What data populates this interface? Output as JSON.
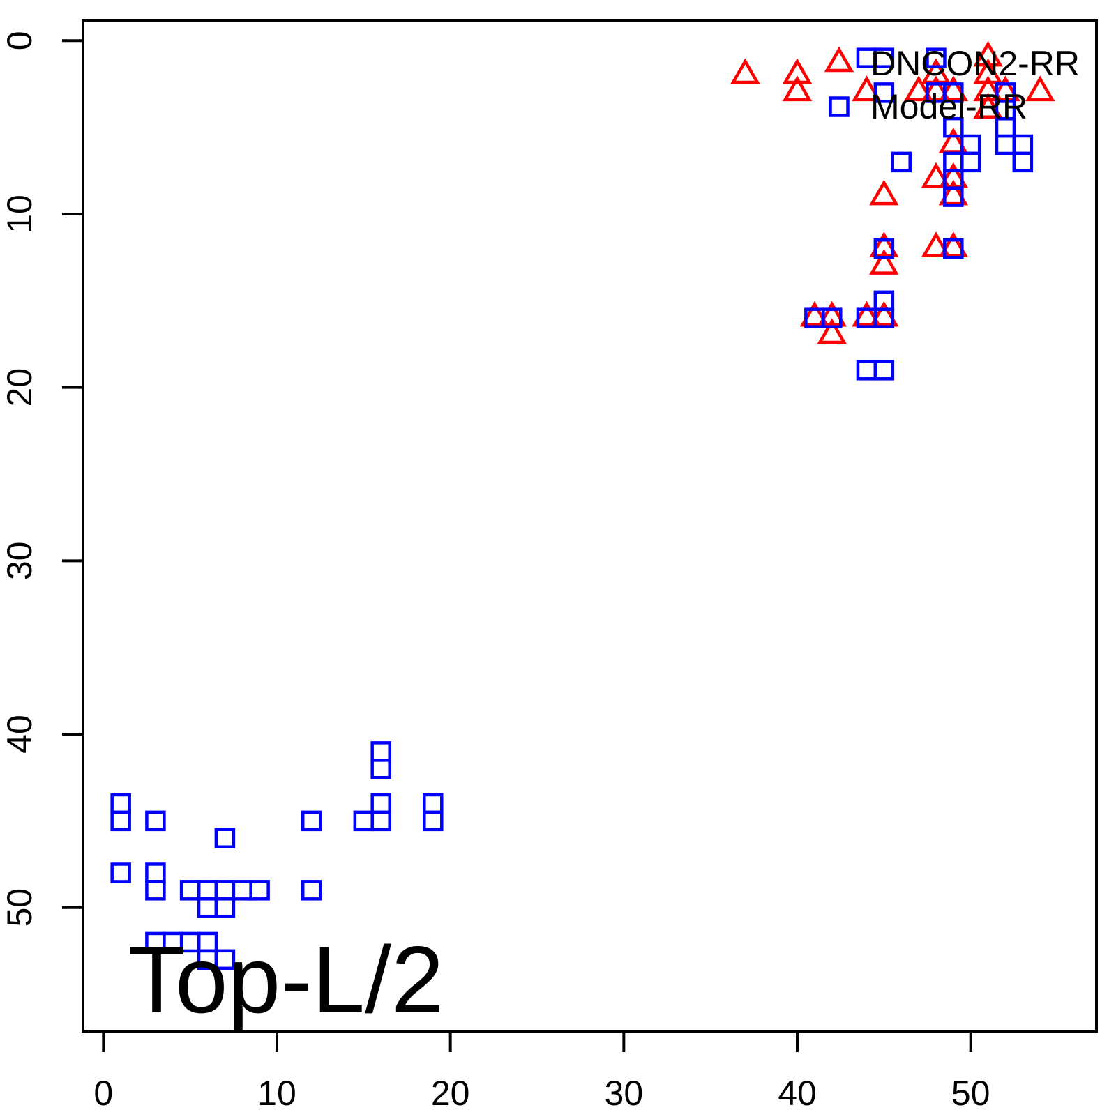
{
  "chart_data": {
    "type": "scatter",
    "title": "",
    "annotation": "Top-L/2",
    "xlabel": "",
    "ylabel": "",
    "x_ticks": [
      0,
      10,
      20,
      30,
      40,
      50
    ],
    "y_ticks": [
      0,
      10,
      20,
      30,
      40,
      50
    ],
    "xlim": [
      -1.2,
      57.2
    ],
    "ylim": [
      57.1,
      -1.2
    ],
    "y_axis_reversed": true,
    "grid": false,
    "legend": {
      "position": "topright",
      "entries": [
        {
          "label": "DNCON2-RR",
          "marker": "triangle",
          "color": "#FF0000"
        },
        {
          "label": "Model-RR",
          "marker": "square",
          "color": "#0000FF"
        }
      ]
    },
    "series": [
      {
        "name": "DNCON2-RR",
        "marker": "triangle",
        "color": "#FF0000",
        "points": [
          [
            37,
            2
          ],
          [
            40,
            2
          ],
          [
            40,
            3
          ],
          [
            44,
            3
          ],
          [
            45,
            9
          ],
          [
            45,
            12
          ],
          [
            45,
            13
          ],
          [
            41,
            16
          ],
          [
            42,
            16
          ],
          [
            42,
            17
          ],
          [
            44,
            16
          ],
          [
            45,
            16
          ],
          [
            47,
            3
          ],
          [
            48,
            2
          ],
          [
            48,
            3
          ],
          [
            48,
            8
          ],
          [
            48,
            12
          ],
          [
            49,
            3
          ],
          [
            49,
            6
          ],
          [
            49,
            8
          ],
          [
            49,
            9
          ],
          [
            49,
            12
          ],
          [
            51,
            1
          ],
          [
            51,
            2
          ],
          [
            51,
            3
          ],
          [
            51,
            4
          ],
          [
            52,
            3
          ],
          [
            54,
            3
          ]
        ]
      },
      {
        "name": "Model-RR",
        "marker": "square",
        "color": "#0000FF",
        "points": [
          [
            44,
            1
          ],
          [
            45,
            1
          ],
          [
            48,
            1
          ],
          [
            45,
            3
          ],
          [
            48,
            3
          ],
          [
            49,
            3
          ],
          [
            52,
            3
          ],
          [
            52,
            4
          ],
          [
            49,
            5
          ],
          [
            52,
            5
          ],
          [
            50,
            6
          ],
          [
            52,
            6
          ],
          [
            53,
            6
          ],
          [
            46,
            7
          ],
          [
            49,
            7
          ],
          [
            50,
            7
          ],
          [
            53,
            7
          ],
          [
            49,
            8
          ],
          [
            49,
            9
          ],
          [
            45,
            12
          ],
          [
            49,
            12
          ],
          [
            45,
            15
          ],
          [
            41,
            16
          ],
          [
            42,
            16
          ],
          [
            44,
            16
          ],
          [
            45,
            16
          ],
          [
            44,
            19
          ],
          [
            45,
            19
          ],
          [
            16,
            41
          ],
          [
            16,
            42
          ],
          [
            1,
            44
          ],
          [
            16,
            44
          ],
          [
            19,
            44
          ],
          [
            1,
            45
          ],
          [
            3,
            45
          ],
          [
            12,
            45
          ],
          [
            15,
            45
          ],
          [
            16,
            45
          ],
          [
            19,
            45
          ],
          [
            7,
            46
          ],
          [
            1,
            48
          ],
          [
            3,
            48
          ],
          [
            3,
            49
          ],
          [
            5,
            49
          ],
          [
            6,
            49
          ],
          [
            7,
            49
          ],
          [
            8,
            49
          ],
          [
            9,
            49
          ],
          [
            12,
            49
          ],
          [
            6,
            50
          ],
          [
            7,
            50
          ],
          [
            3,
            52
          ],
          [
            4,
            52
          ],
          [
            5,
            52
          ],
          [
            6,
            52
          ],
          [
            6,
            53
          ],
          [
            7,
            53
          ]
        ]
      }
    ]
  },
  "colors": {
    "triangle_series": "#FF0000",
    "square_series": "#0000FF",
    "axis": "#000000",
    "background": "#FFFFFF"
  }
}
